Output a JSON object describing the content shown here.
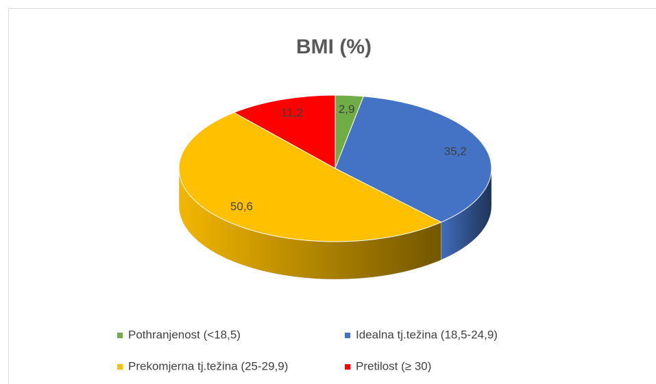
{
  "chart_data": {
    "type": "pie",
    "title": "BMI (%)",
    "categories": [
      "Pothranjenost (<18,5)",
      "Idealna tj.težina (18,5-24,9)",
      "Prekomjerna tj.težina (25-29,9)",
      "Pretilost (≥ 30)"
    ],
    "values": [
      2.9,
      35.2,
      50.6,
      11.2
    ],
    "value_labels": [
      "2,9",
      "35,2",
      "50,6",
      "11,2"
    ],
    "colors": [
      "#70ad47",
      "#4472c4",
      "#ffc000",
      "#ff0000"
    ],
    "legend": "bottom"
  }
}
